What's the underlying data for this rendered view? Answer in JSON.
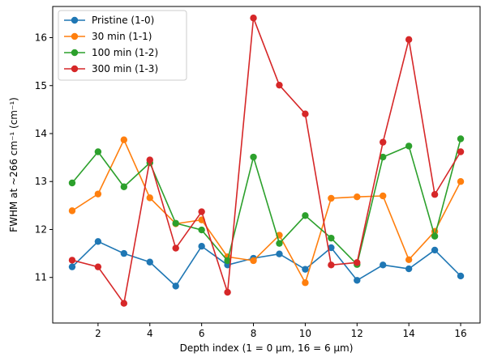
{
  "chart_data": {
    "type": "line",
    "xlabel": "Depth index (1 = 0 μm, 16 = 6 μm)",
    "ylabel": "FWHM at ~266 cm⁻¹ (cm⁻¹)",
    "xlim": [
      0.25,
      16.75
    ],
    "ylim": [
      10.05,
      16.65
    ],
    "xticks": [
      2,
      4,
      6,
      8,
      10,
      12,
      14,
      16
    ],
    "yticks": [
      11,
      12,
      13,
      14,
      15,
      16
    ],
    "grid": false,
    "legend_position": "top-left",
    "x": [
      1,
      2,
      3,
      4,
      5,
      6,
      7,
      8,
      9,
      10,
      11,
      12,
      13,
      14,
      15,
      16
    ],
    "series": [
      {
        "name": "Pristine (1-0)",
        "color": "#1f77b4",
        "values": [
          11.22,
          11.75,
          11.5,
          11.32,
          10.82,
          11.65,
          11.26,
          11.4,
          11.49,
          11.17,
          11.62,
          10.94,
          11.26,
          11.18,
          11.57,
          11.03
        ]
      },
      {
        "name": "30 min (1-1)",
        "color": "#ff7f0e",
        "values": [
          12.39,
          12.74,
          13.87,
          12.66,
          12.12,
          12.2,
          11.43,
          11.35,
          11.88,
          10.89,
          12.65,
          12.68,
          12.7,
          11.37,
          11.96,
          13.0
        ]
      },
      {
        "name": "100 min (1-2)",
        "color": "#2ca02c",
        "values": [
          12.97,
          13.62,
          12.89,
          13.39,
          12.13,
          11.99,
          11.35,
          13.51,
          11.71,
          12.29,
          11.82,
          11.27,
          13.51,
          13.74,
          11.86,
          13.89
        ]
      },
      {
        "name": "300 min (1-3)",
        "color": "#d62728",
        "values": [
          11.36,
          11.22,
          10.46,
          13.45,
          11.61,
          12.37,
          10.69,
          16.41,
          15.01,
          14.41,
          11.26,
          11.31,
          13.82,
          15.96,
          12.73,
          13.62
        ]
      }
    ]
  }
}
